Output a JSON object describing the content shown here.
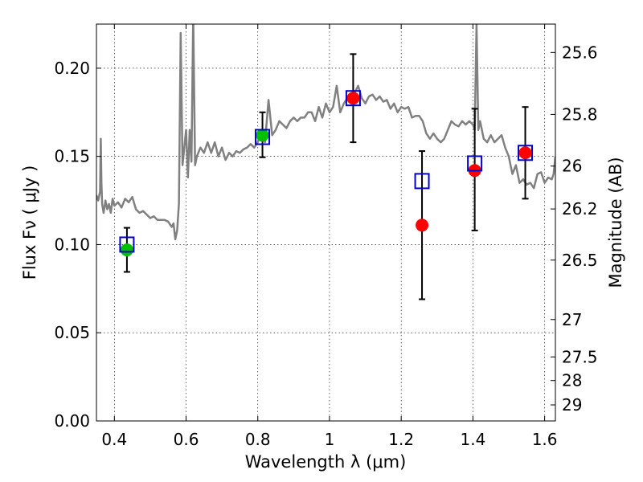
{
  "chart_data": {
    "type": "scatter",
    "title": "",
    "xlabel": "Wavelength  λ (μm)",
    "ylabel": "Flux  Fν  ( μJy )",
    "y2label": "Magnitude (AB)",
    "xlim": [
      0.35,
      1.63
    ],
    "ylim": [
      0.0,
      0.225
    ],
    "grid": true,
    "x_ticks": [
      0.4,
      0.6,
      0.8,
      1.0,
      1.2,
      1.4,
      1.6
    ],
    "x_tick_labels": [
      "0.4",
      "0.6",
      "0.8",
      "1",
      "1.2",
      "1.4",
      "1.6"
    ],
    "y_ticks": [
      0.0,
      0.05,
      0.1,
      0.15,
      0.2
    ],
    "y_tick_labels": [
      "0.00",
      "0.05",
      "0.10",
      "0.15",
      "0.20"
    ],
    "y2_ticks": [
      {
        "label": "25.6",
        "flux": 0.2089
      },
      {
        "label": "25.8",
        "flux": 0.1738
      },
      {
        "label": "26",
        "flux": 0.1445
      },
      {
        "label": "26.2",
        "flux": 0.1202
      },
      {
        "label": "26.5",
        "flux": 0.0912
      },
      {
        "label": "27",
        "flux": 0.0575
      },
      {
        "label": "27.5",
        "flux": 0.0363
      },
      {
        "label": "28",
        "flux": 0.0229
      },
      {
        "label": "29",
        "flux": 0.0091
      }
    ],
    "series": [
      {
        "role": "template",
        "color": "#808080",
        "x": [
          0.35,
          0.355,
          0.36,
          0.362,
          0.364,
          0.366,
          0.37,
          0.375,
          0.38,
          0.385,
          0.39,
          0.395,
          0.4,
          0.41,
          0.42,
          0.43,
          0.44,
          0.45,
          0.46,
          0.47,
          0.48,
          0.49,
          0.5,
          0.51,
          0.52,
          0.53,
          0.54,
          0.55,
          0.56,
          0.565,
          0.57,
          0.575,
          0.58,
          0.585,
          0.59,
          0.6,
          0.605,
          0.61,
          0.615,
          0.62,
          0.625,
          0.63,
          0.64,
          0.65,
          0.66,
          0.67,
          0.68,
          0.69,
          0.7,
          0.71,
          0.72,
          0.73,
          0.74,
          0.75,
          0.76,
          0.77,
          0.78,
          0.79,
          0.8,
          0.81,
          0.82,
          0.83,
          0.84,
          0.85,
          0.86,
          0.87,
          0.88,
          0.89,
          0.9,
          0.91,
          0.92,
          0.93,
          0.94,
          0.95,
          0.96,
          0.97,
          0.98,
          0.99,
          1.0,
          1.01,
          1.02,
          1.03,
          1.04,
          1.05,
          1.06,
          1.07,
          1.08,
          1.09,
          1.1,
          1.11,
          1.12,
          1.13,
          1.14,
          1.15,
          1.16,
          1.17,
          1.18,
          1.19,
          1.2,
          1.21,
          1.22,
          1.23,
          1.24,
          1.25,
          1.26,
          1.27,
          1.28,
          1.29,
          1.3,
          1.31,
          1.32,
          1.33,
          1.34,
          1.35,
          1.36,
          1.37,
          1.38,
          1.39,
          1.4,
          1.405,
          1.41,
          1.415,
          1.42,
          1.43,
          1.44,
          1.45,
          1.46,
          1.47,
          1.48,
          1.49,
          1.5,
          1.51,
          1.52,
          1.53,
          1.54,
          1.55,
          1.56,
          1.57,
          1.58,
          1.59,
          1.6,
          1.61,
          1.62,
          1.625,
          1.63
        ],
        "y": [
          0.128,
          0.125,
          0.13,
          0.16,
          0.135,
          0.123,
          0.118,
          0.125,
          0.12,
          0.123,
          0.118,
          0.126,
          0.122,
          0.124,
          0.121,
          0.126,
          0.124,
          0.127,
          0.12,
          0.118,
          0.119,
          0.117,
          0.115,
          0.116,
          0.114,
          0.114,
          0.114,
          0.113,
          0.11,
          0.112,
          0.103,
          0.108,
          0.123,
          0.22,
          0.145,
          0.165,
          0.138,
          0.165,
          0.147,
          0.23,
          0.145,
          0.15,
          0.155,
          0.152,
          0.158,
          0.152,
          0.158,
          0.15,
          0.155,
          0.148,
          0.152,
          0.15,
          0.153,
          0.152,
          0.154,
          0.155,
          0.157,
          0.155,
          0.158,
          0.165,
          0.158,
          0.182,
          0.162,
          0.165,
          0.17,
          0.168,
          0.166,
          0.17,
          0.172,
          0.17,
          0.172,
          0.172,
          0.175,
          0.175,
          0.17,
          0.178,
          0.172,
          0.18,
          0.175,
          0.178,
          0.19,
          0.175,
          0.18,
          0.183,
          0.182,
          0.186,
          0.19,
          0.183,
          0.18,
          0.184,
          0.185,
          0.182,
          0.184,
          0.181,
          0.182,
          0.177,
          0.18,
          0.175,
          0.178,
          0.177,
          0.178,
          0.172,
          0.173,
          0.173,
          0.17,
          0.163,
          0.16,
          0.163,
          0.16,
          0.158,
          0.16,
          0.165,
          0.17,
          0.168,
          0.167,
          0.17,
          0.168,
          0.17,
          0.168,
          0.165,
          0.225,
          0.165,
          0.17,
          0.16,
          0.158,
          0.162,
          0.158,
          0.16,
          0.162,
          0.155,
          0.15,
          0.14,
          0.145,
          0.135,
          0.137,
          0.134,
          0.135,
          0.132,
          0.14,
          0.141,
          0.135,
          0.138,
          0.137,
          0.14,
          0.15
        ]
      },
      {
        "role": "model",
        "marker": "open-square",
        "color": "#0000cc",
        "x": [
          0.435,
          0.813,
          1.066,
          1.258,
          1.405,
          1.546
        ],
        "y": [
          0.1,
          0.161,
          0.183,
          0.136,
          0.146,
          0.152
        ]
      },
      {
        "role": "observed",
        "marker": "circle",
        "color": "#00c000",
        "x": [
          0.435,
          0.813
        ],
        "y": [
          0.097,
          0.162
        ],
        "yerr_low": [
          0.0125,
          0.0125
        ],
        "yerr_high": [
          0.0125,
          0.013
        ]
      },
      {
        "role": "observed",
        "marker": "circle",
        "color": "#ff0000",
        "x": [
          1.066,
          1.258,
          1.405,
          1.546
        ],
        "y": [
          0.183,
          0.111,
          0.142,
          0.152
        ],
        "yerr_low": [
          0.025,
          0.042,
          0.034,
          0.026
        ],
        "yerr_high": [
          0.025,
          0.042,
          0.035,
          0.026
        ]
      }
    ]
  }
}
